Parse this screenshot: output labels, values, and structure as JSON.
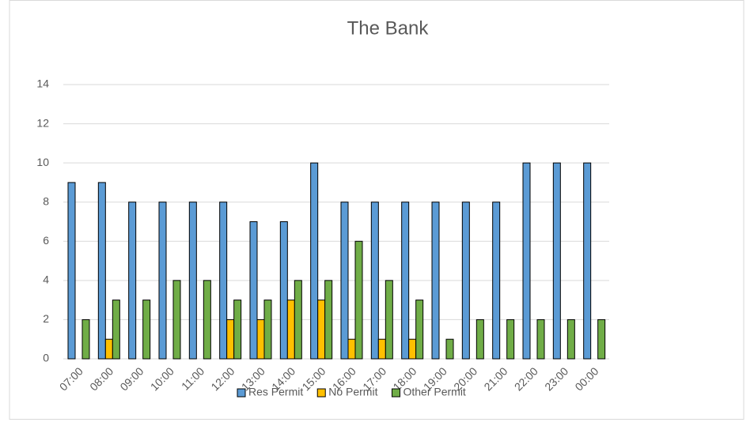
{
  "chart_data": {
    "type": "bar",
    "title": "The Bank",
    "categories": [
      "07:00",
      "08:00",
      "09:00",
      "10:00",
      "11:00",
      "12:00",
      "13:00",
      "14:00",
      "15:00",
      "16:00",
      "17:00",
      "18:00",
      "19:00",
      "20:00",
      "21:00",
      "22:00",
      "23:00",
      "00:00"
    ],
    "series": [
      {
        "name": "Res Permit",
        "color": "#5b9bd5",
        "values": [
          9,
          9,
          8,
          8,
          8,
          8,
          7,
          7,
          10,
          8,
          8,
          8,
          8,
          8,
          8,
          10,
          10,
          10
        ]
      },
      {
        "name": "No Permit",
        "color": "#ffc000",
        "values": [
          0,
          1,
          0,
          0,
          0,
          2,
          2,
          3,
          3,
          1,
          1,
          1,
          0,
          0,
          0,
          0,
          0,
          0
        ]
      },
      {
        "name": "Other Permit",
        "color": "#70ad47",
        "values": [
          2,
          3,
          3,
          4,
          4,
          3,
          3,
          4,
          4,
          6,
          4,
          3,
          1,
          2,
          2,
          2,
          2,
          2
        ]
      }
    ],
    "ylim": [
      0,
      14
    ],
    "yticks": [
      0,
      2,
      4,
      6,
      8,
      10,
      12,
      14
    ],
    "grid": true,
    "legend": "bottom"
  }
}
